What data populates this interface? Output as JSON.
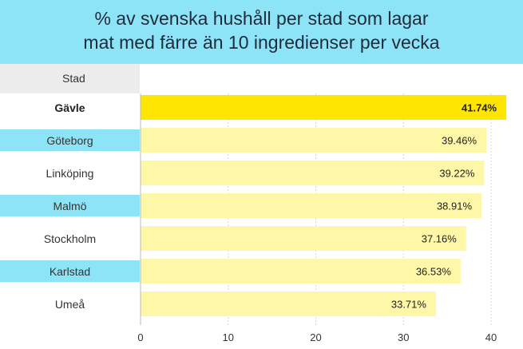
{
  "chart_data": {
    "type": "bar",
    "orientation": "horizontal",
    "title_line1": "% av svenska hushåll per stad som lagar",
    "title_line2": "mat med färre än 10 ingredienser per vecka",
    "column_header": "Stad",
    "categories": [
      "Gävle",
      "Göteborg",
      "Linköping",
      "Malmö",
      "Stockholm",
      "Karlstad",
      "Umeå"
    ],
    "values": [
      41.74,
      39.46,
      39.22,
      38.91,
      37.16,
      36.53,
      33.71
    ],
    "value_labels": [
      "41.74%",
      "39.46%",
      "39.22%",
      "38.91%",
      "37.16%",
      "36.53%",
      "33.71%"
    ],
    "highlight_index": 0,
    "xlim": [
      0,
      40
    ],
    "xticks": [
      0,
      10,
      20,
      30,
      40
    ],
    "grid": true,
    "colors": {
      "highlight": "#ffe600",
      "bar": "#fff7a8",
      "header": "#8ee4f7",
      "stripe": "#8ee4f7"
    }
  }
}
